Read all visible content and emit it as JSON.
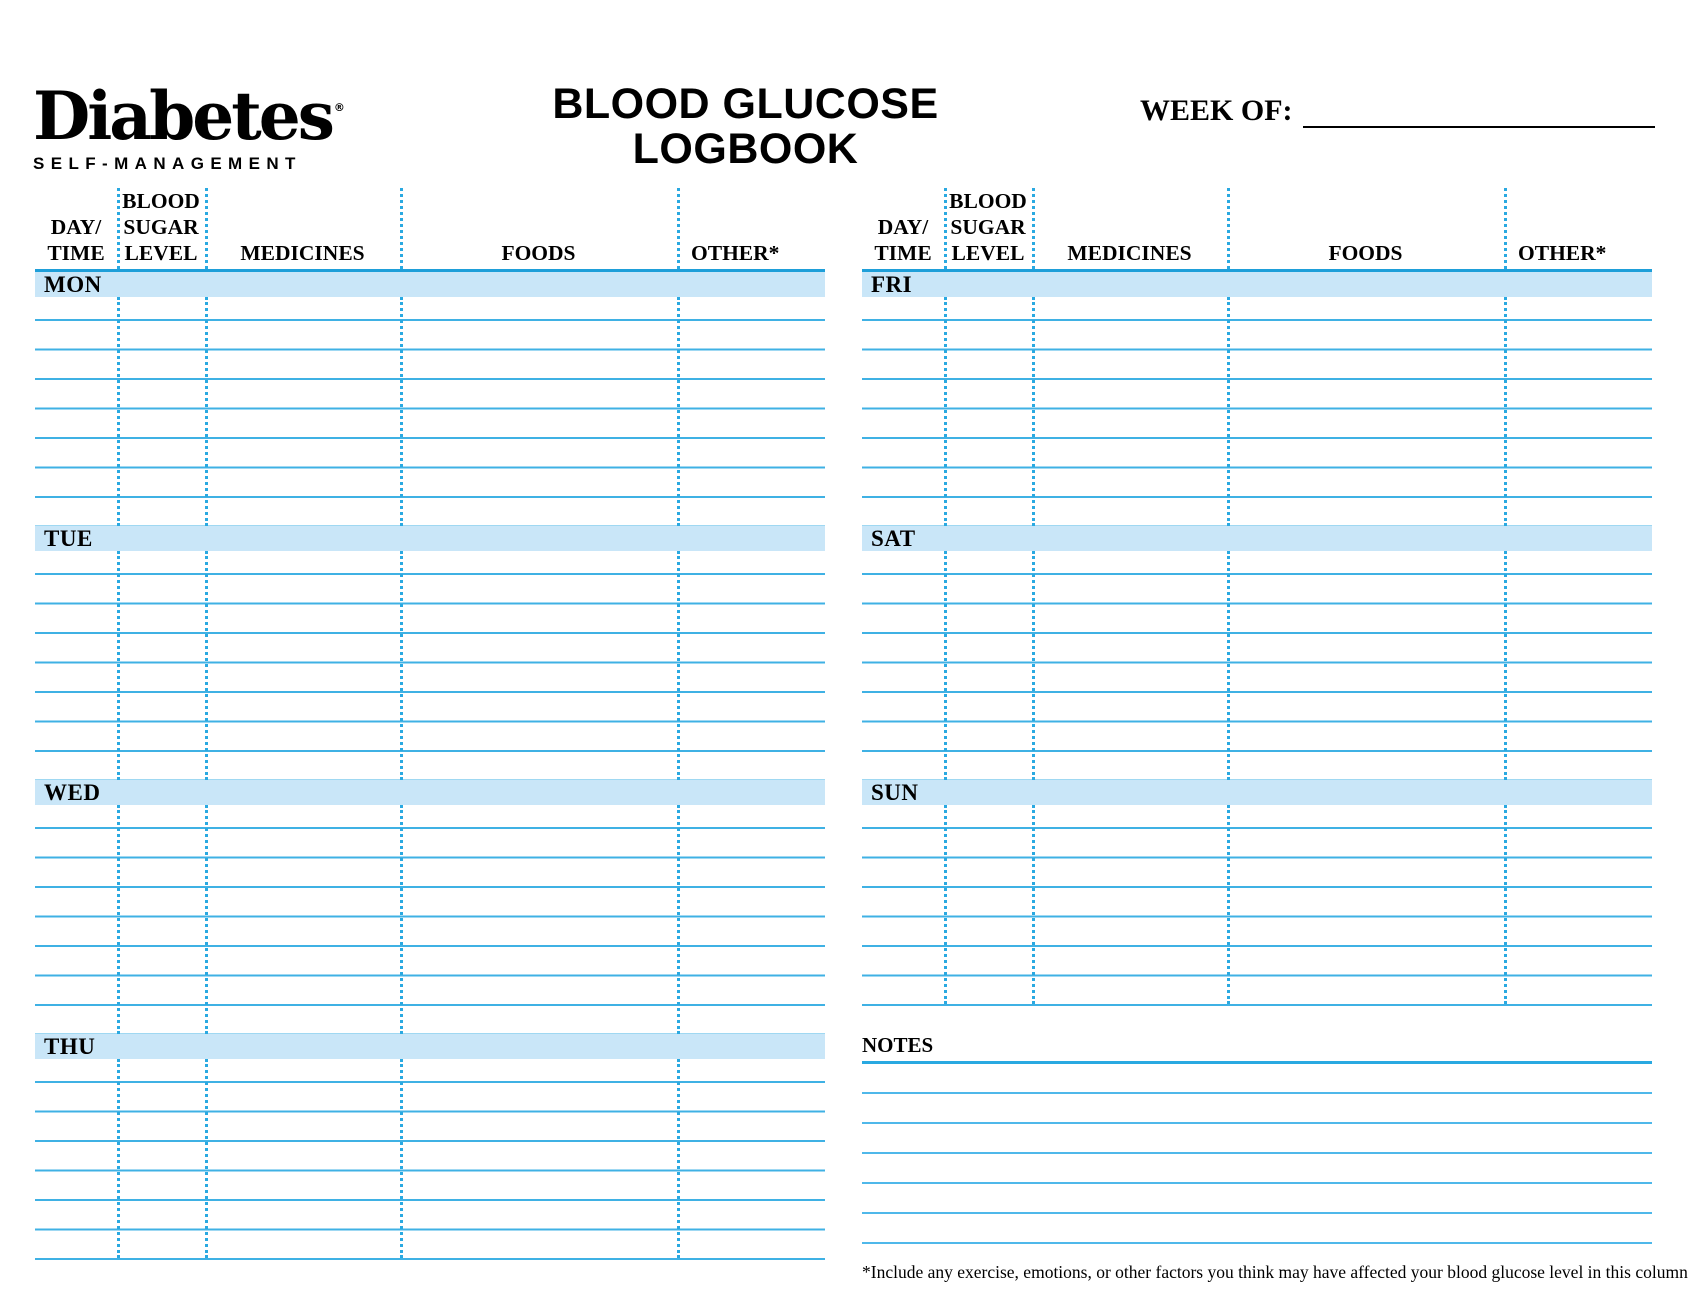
{
  "logo": {
    "brand": "Diabetes",
    "registered_mark": "®",
    "tagline": "SELF-MANAGEMENT"
  },
  "title": {
    "line1": "BLOOD GLUCOSE",
    "line2": "LOGBOOK"
  },
  "week_of": {
    "label": "WEEK OF:"
  },
  "table": {
    "columns": [
      "DAY/\nTIME",
      "BLOOD\nSUGAR\nLEVEL",
      "MEDICINES",
      "FOODS",
      "OTHER*"
    ],
    "days": [
      "MON",
      "TUE",
      "WED",
      "THU",
      "FRI",
      "SAT",
      "SUN"
    ]
  },
  "notes": {
    "label": "NOTES"
  },
  "footnote": "*Include any exercise, emotions, or other factors you think may have affected your blood glucose level in this column.",
  "colors": {
    "accent_blue": "#29A9E1",
    "band_fill": "#C9E6F8",
    "header_rule": "#1E9FD9",
    "row_line": "#3FB1E4"
  }
}
